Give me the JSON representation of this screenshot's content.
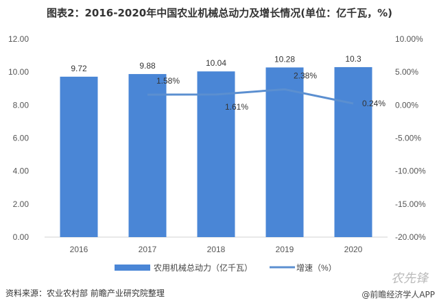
{
  "title": "图表2：2016-2020年中国农业机械总动力及增长情况(单位：亿千瓦，%)",
  "source": "资料来源：农业农村部 前瞻产业研究院整理",
  "credit": "@前瞻经济学人APP",
  "logo_text": "农先锋",
  "chart_data": {
    "type": "bar+line",
    "categories": [
      "2016",
      "2017",
      "2018",
      "2019",
      "2020"
    ],
    "series": [
      {
        "name": "农用机械总动力（亿千瓦）",
        "type": "bar",
        "axis": "left",
        "color": "#4a86d6",
        "values": [
          9.72,
          9.88,
          10.04,
          10.28,
          10.3
        ],
        "labels": [
          "9.72",
          "9.88",
          "10.04",
          "10.28",
          "10.3"
        ]
      },
      {
        "name": "增速（%）",
        "type": "line",
        "axis": "right",
        "color": "#5b8fd0",
        "values": [
          null,
          1.58,
          1.61,
          2.38,
          0.24
        ],
        "labels": [
          "",
          "1.58%",
          "1.61%",
          "2.38%",
          "0.24%"
        ]
      }
    ],
    "left_axis": {
      "min": 0,
      "max": 12,
      "ticks": [
        "0.00",
        "2.00",
        "4.00",
        "6.00",
        "8.00",
        "10.00",
        "12.00"
      ]
    },
    "right_axis": {
      "min": -20,
      "max": 10,
      "ticks": [
        "-20.00%",
        "-15.00%",
        "-10.00%",
        "-5.00%",
        "0.00%",
        "5.00%",
        "10.00%"
      ]
    },
    "grid": false,
    "legend": "bottom"
  }
}
